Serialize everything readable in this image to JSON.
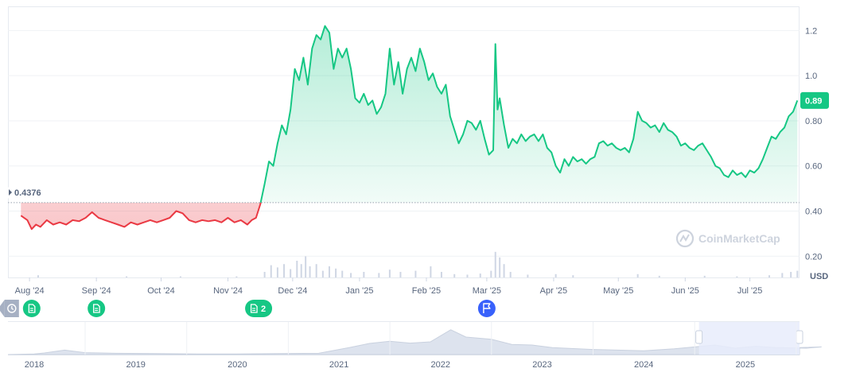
{
  "chart_data": {
    "type": "line",
    "currency_label": "USD",
    "watermark": "CoinMarketCap",
    "baseline": {
      "value": 0.4376,
      "label": "0.4376"
    },
    "last_price": {
      "value": 0.89,
      "label": "0.89"
    },
    "ylim": [
      0.2,
      1.3
    ],
    "y_ticks": [
      {
        "value": 0.2,
        "label": "0.20"
      },
      {
        "value": 0.4,
        "label": "0.40"
      },
      {
        "value": 0.6,
        "label": "0.60"
      },
      {
        "value": 0.8,
        "label": "0.80"
      },
      {
        "value": 1.0,
        "label": "1.0"
      },
      {
        "value": 1.2,
        "label": "1.2"
      }
    ],
    "x_range": [
      "2024-07-22",
      "2025-07-24"
    ],
    "x_ticks": [
      {
        "date": "2024-08-01",
        "label": "Aug '24"
      },
      {
        "date": "2024-09-01",
        "label": "Sep '24"
      },
      {
        "date": "2024-10-01",
        "label": "Oct '24"
      },
      {
        "date": "2024-11-01",
        "label": "Nov '24"
      },
      {
        "date": "2024-12-01",
        "label": "Dec '24"
      },
      {
        "date": "2025-01-01",
        "label": "Jan '25"
      },
      {
        "date": "2025-02-01",
        "label": "Feb '25"
      },
      {
        "date": "2025-03-01",
        "label": "Mar '25"
      },
      {
        "date": "2025-04-01",
        "label": "Apr '25"
      },
      {
        "date": "2025-05-01",
        "label": "May '25"
      },
      {
        "date": "2025-06-01",
        "label": "Jun '25"
      },
      {
        "date": "2025-07-01",
        "label": "Jul '25"
      }
    ],
    "colors": {
      "up": "#16c784",
      "down": "#ea3943",
      "up_fill": "#16c784",
      "down_fill": "#ea3943",
      "grid": "#eff2f5",
      "baseline": "#9aa3b1",
      "volume": "#cfd6e4",
      "marker_green": "#16c784",
      "marker_blue": "#3861fb",
      "marker_gray": "#a6b0c3",
      "navigator_fill": "#dde3ee",
      "navigator_window": "#e7ecfb"
    },
    "series": [
      {
        "points": [
          [
            "2024-07-28",
            0.38
          ],
          [
            "2024-07-31",
            0.36
          ],
          [
            "2024-08-02",
            0.32
          ],
          [
            "2024-08-04",
            0.34
          ],
          [
            "2024-08-06",
            0.33
          ],
          [
            "2024-08-09",
            0.36
          ],
          [
            "2024-08-12",
            0.34
          ],
          [
            "2024-08-15",
            0.35
          ],
          [
            "2024-08-18",
            0.34
          ],
          [
            "2024-08-21",
            0.36
          ],
          [
            "2024-08-24",
            0.355
          ],
          [
            "2024-08-27",
            0.37
          ],
          [
            "2024-08-30",
            0.395
          ],
          [
            "2024-09-02",
            0.37
          ],
          [
            "2024-09-05",
            0.36
          ],
          [
            "2024-09-08",
            0.35
          ],
          [
            "2024-09-11",
            0.34
          ],
          [
            "2024-09-14",
            0.33
          ],
          [
            "2024-09-17",
            0.35
          ],
          [
            "2024-09-20",
            0.34
          ],
          [
            "2024-09-23",
            0.35
          ],
          [
            "2024-09-26",
            0.36
          ],
          [
            "2024-09-29",
            0.35
          ],
          [
            "2024-10-02",
            0.36
          ],
          [
            "2024-10-05",
            0.37
          ],
          [
            "2024-10-08",
            0.4
          ],
          [
            "2024-10-11",
            0.39
          ],
          [
            "2024-10-14",
            0.36
          ],
          [
            "2024-10-17",
            0.35
          ],
          [
            "2024-10-20",
            0.36
          ],
          [
            "2024-10-23",
            0.355
          ],
          [
            "2024-10-26",
            0.36
          ],
          [
            "2024-10-29",
            0.35
          ],
          [
            "2024-11-01",
            0.37
          ],
          [
            "2024-11-04",
            0.35
          ],
          [
            "2024-11-07",
            0.36
          ],
          [
            "2024-11-10",
            0.34
          ],
          [
            "2024-11-12",
            0.36
          ],
          [
            "2024-11-14",
            0.37
          ],
          [
            "2024-11-16",
            0.43
          ],
          [
            "2024-11-18",
            0.52
          ],
          [
            "2024-11-20",
            0.62
          ],
          [
            "2024-11-22",
            0.6
          ],
          [
            "2024-11-24",
            0.7
          ],
          [
            "2024-11-26",
            0.78
          ],
          [
            "2024-11-28",
            0.74
          ],
          [
            "2024-11-30",
            0.85
          ],
          [
            "2024-12-02",
            1.03
          ],
          [
            "2024-12-04",
            0.98
          ],
          [
            "2024-12-06",
            1.08
          ],
          [
            "2024-12-08",
            0.96
          ],
          [
            "2024-12-10",
            1.12
          ],
          [
            "2024-12-12",
            1.18
          ],
          [
            "2024-12-14",
            1.16
          ],
          [
            "2024-12-16",
            1.22
          ],
          [
            "2024-12-18",
            1.19
          ],
          [
            "2024-12-20",
            1.03
          ],
          [
            "2024-12-22",
            1.12
          ],
          [
            "2024-12-24",
            1.08
          ],
          [
            "2024-12-26",
            1.12
          ],
          [
            "2024-12-28",
            1.03
          ],
          [
            "2024-12-30",
            0.9
          ],
          [
            "2025-01-01",
            0.88
          ],
          [
            "2025-01-03",
            0.92
          ],
          [
            "2025-01-05",
            0.87
          ],
          [
            "2025-01-07",
            0.89
          ],
          [
            "2025-01-09",
            0.83
          ],
          [
            "2025-01-11",
            0.86
          ],
          [
            "2025-01-13",
            0.92
          ],
          [
            "2025-01-15",
            1.12
          ],
          [
            "2025-01-17",
            0.96
          ],
          [
            "2025-01-19",
            1.06
          ],
          [
            "2025-01-21",
            0.92
          ],
          [
            "2025-01-23",
            1.03
          ],
          [
            "2025-01-25",
            1.08
          ],
          [
            "2025-01-27",
            1.02
          ],
          [
            "2025-01-29",
            1.12
          ],
          [
            "2025-01-31",
            1.06
          ],
          [
            "2025-02-02",
            0.98
          ],
          [
            "2025-02-04",
            1.01
          ],
          [
            "2025-02-06",
            0.95
          ],
          [
            "2025-02-08",
            0.92
          ],
          [
            "2025-02-10",
            0.96
          ],
          [
            "2025-02-12",
            0.82
          ],
          [
            "2025-02-14",
            0.76
          ],
          [
            "2025-02-16",
            0.7
          ],
          [
            "2025-02-18",
            0.74
          ],
          [
            "2025-02-20",
            0.8
          ],
          [
            "2025-02-22",
            0.79
          ],
          [
            "2025-02-24",
            0.76
          ],
          [
            "2025-02-26",
            0.8
          ],
          [
            "2025-02-28",
            0.72
          ],
          [
            "2025-03-02",
            0.65
          ],
          [
            "2025-03-04",
            0.67
          ],
          [
            "2025-03-05",
            1.14
          ],
          [
            "2025-03-06",
            0.85
          ],
          [
            "2025-03-07",
            0.9
          ],
          [
            "2025-03-09",
            0.78
          ],
          [
            "2025-03-11",
            0.68
          ],
          [
            "2025-03-13",
            0.72
          ],
          [
            "2025-03-15",
            0.7
          ],
          [
            "2025-03-17",
            0.74
          ],
          [
            "2025-03-19",
            0.71
          ],
          [
            "2025-03-21",
            0.73
          ],
          [
            "2025-03-23",
            0.74
          ],
          [
            "2025-03-25",
            0.71
          ],
          [
            "2025-03-27",
            0.74
          ],
          [
            "2025-03-29",
            0.68
          ],
          [
            "2025-03-31",
            0.66
          ],
          [
            "2025-04-02",
            0.6
          ],
          [
            "2025-04-04",
            0.57
          ],
          [
            "2025-04-06",
            0.63
          ],
          [
            "2025-04-08",
            0.6
          ],
          [
            "2025-04-10",
            0.64
          ],
          [
            "2025-04-12",
            0.62
          ],
          [
            "2025-04-14",
            0.63
          ],
          [
            "2025-04-16",
            0.61
          ],
          [
            "2025-04-18",
            0.63
          ],
          [
            "2025-04-20",
            0.64
          ],
          [
            "2025-04-22",
            0.7
          ],
          [
            "2025-04-24",
            0.71
          ],
          [
            "2025-04-26",
            0.69
          ],
          [
            "2025-04-28",
            0.7
          ],
          [
            "2025-04-30",
            0.68
          ],
          [
            "2025-05-02",
            0.67
          ],
          [
            "2025-05-04",
            0.68
          ],
          [
            "2025-05-06",
            0.66
          ],
          [
            "2025-05-08",
            0.72
          ],
          [
            "2025-05-10",
            0.84
          ],
          [
            "2025-05-12",
            0.8
          ],
          [
            "2025-05-14",
            0.79
          ],
          [
            "2025-05-16",
            0.77
          ],
          [
            "2025-05-18",
            0.78
          ],
          [
            "2025-05-20",
            0.75
          ],
          [
            "2025-05-22",
            0.79
          ],
          [
            "2025-05-24",
            0.76
          ],
          [
            "2025-05-26",
            0.75
          ],
          [
            "2025-05-28",
            0.73
          ],
          [
            "2025-05-30",
            0.69
          ],
          [
            "2025-06-01",
            0.7
          ],
          [
            "2025-06-03",
            0.68
          ],
          [
            "2025-06-05",
            0.67
          ],
          [
            "2025-06-07",
            0.69
          ],
          [
            "2025-06-09",
            0.7
          ],
          [
            "2025-06-11",
            0.67
          ],
          [
            "2025-06-13",
            0.64
          ],
          [
            "2025-06-15",
            0.6
          ],
          [
            "2025-06-17",
            0.59
          ],
          [
            "2025-06-19",
            0.56
          ],
          [
            "2025-06-21",
            0.55
          ],
          [
            "2025-06-23",
            0.58
          ],
          [
            "2025-06-25",
            0.56
          ],
          [
            "2025-06-27",
            0.57
          ],
          [
            "2025-06-29",
            0.55
          ],
          [
            "2025-07-01",
            0.58
          ],
          [
            "2025-07-03",
            0.57
          ],
          [
            "2025-07-05",
            0.59
          ],
          [
            "2025-07-07",
            0.63
          ],
          [
            "2025-07-09",
            0.68
          ],
          [
            "2025-07-11",
            0.73
          ],
          [
            "2025-07-13",
            0.72
          ],
          [
            "2025-07-15",
            0.75
          ],
          [
            "2025-07-17",
            0.77
          ],
          [
            "2025-07-19",
            0.82
          ],
          [
            "2025-07-21",
            0.84
          ],
          [
            "2025-07-23",
            0.89
          ]
        ]
      }
    ],
    "volume_series": [
      [
        "2024-08-05",
        0.04
      ],
      [
        "2024-09-15",
        0.02
      ],
      [
        "2024-10-10",
        0.02
      ],
      [
        "2024-11-05",
        0.02
      ],
      [
        "2024-11-18",
        0.1
      ],
      [
        "2024-11-21",
        0.22
      ],
      [
        "2024-11-24",
        0.18
      ],
      [
        "2024-11-27",
        0.24
      ],
      [
        "2024-11-30",
        0.15
      ],
      [
        "2024-12-03",
        0.3
      ],
      [
        "2024-12-05",
        0.24
      ],
      [
        "2024-12-07",
        0.38
      ],
      [
        "2024-12-09",
        0.2
      ],
      [
        "2024-12-12",
        0.24
      ],
      [
        "2024-12-15",
        0.12
      ],
      [
        "2024-12-18",
        0.2
      ],
      [
        "2024-12-21",
        0.16
      ],
      [
        "2024-12-24",
        0.12
      ],
      [
        "2024-12-28",
        0.08
      ],
      [
        "2025-01-03",
        0.1
      ],
      [
        "2025-01-10",
        0.08
      ],
      [
        "2025-01-15",
        0.14
      ],
      [
        "2025-01-20",
        0.1
      ],
      [
        "2025-01-27",
        0.12
      ],
      [
        "2025-02-03",
        0.2
      ],
      [
        "2025-02-08",
        0.1
      ],
      [
        "2025-02-14",
        0.06
      ],
      [
        "2025-02-20",
        0.05
      ],
      [
        "2025-02-26",
        0.07
      ],
      [
        "2025-03-03",
        0.12
      ],
      [
        "2025-03-05",
        0.46
      ],
      [
        "2025-03-07",
        0.36
      ],
      [
        "2025-03-09",
        0.24
      ],
      [
        "2025-03-12",
        0.1
      ],
      [
        "2025-03-20",
        0.05
      ],
      [
        "2025-04-02",
        0.06
      ],
      [
        "2025-04-10",
        0.04
      ],
      [
        "2025-05-10",
        0.06
      ],
      [
        "2025-05-20",
        0.03
      ],
      [
        "2025-06-10",
        0.03
      ],
      [
        "2025-06-25",
        0.02
      ],
      [
        "2025-07-10",
        0.04
      ],
      [
        "2025-07-16",
        0.08
      ],
      [
        "2025-07-20",
        0.1
      ],
      [
        "2025-07-23",
        0.12
      ]
    ],
    "events": [
      {
        "date": "2024-08-02",
        "kind": "doc",
        "label": ""
      },
      {
        "date": "2024-09-01",
        "kind": "doc",
        "label": ""
      },
      {
        "date": "2024-11-13",
        "kind": "doc",
        "label": "2"
      },
      {
        "date": "2025-03-01",
        "kind": "flag",
        "label": ""
      }
    ],
    "navigator": {
      "years": [
        "2018",
        "2019",
        "2020",
        "2021",
        "2022",
        "2023",
        "2024",
        "2025"
      ],
      "window": [
        0.873,
        1.0
      ]
    }
  }
}
